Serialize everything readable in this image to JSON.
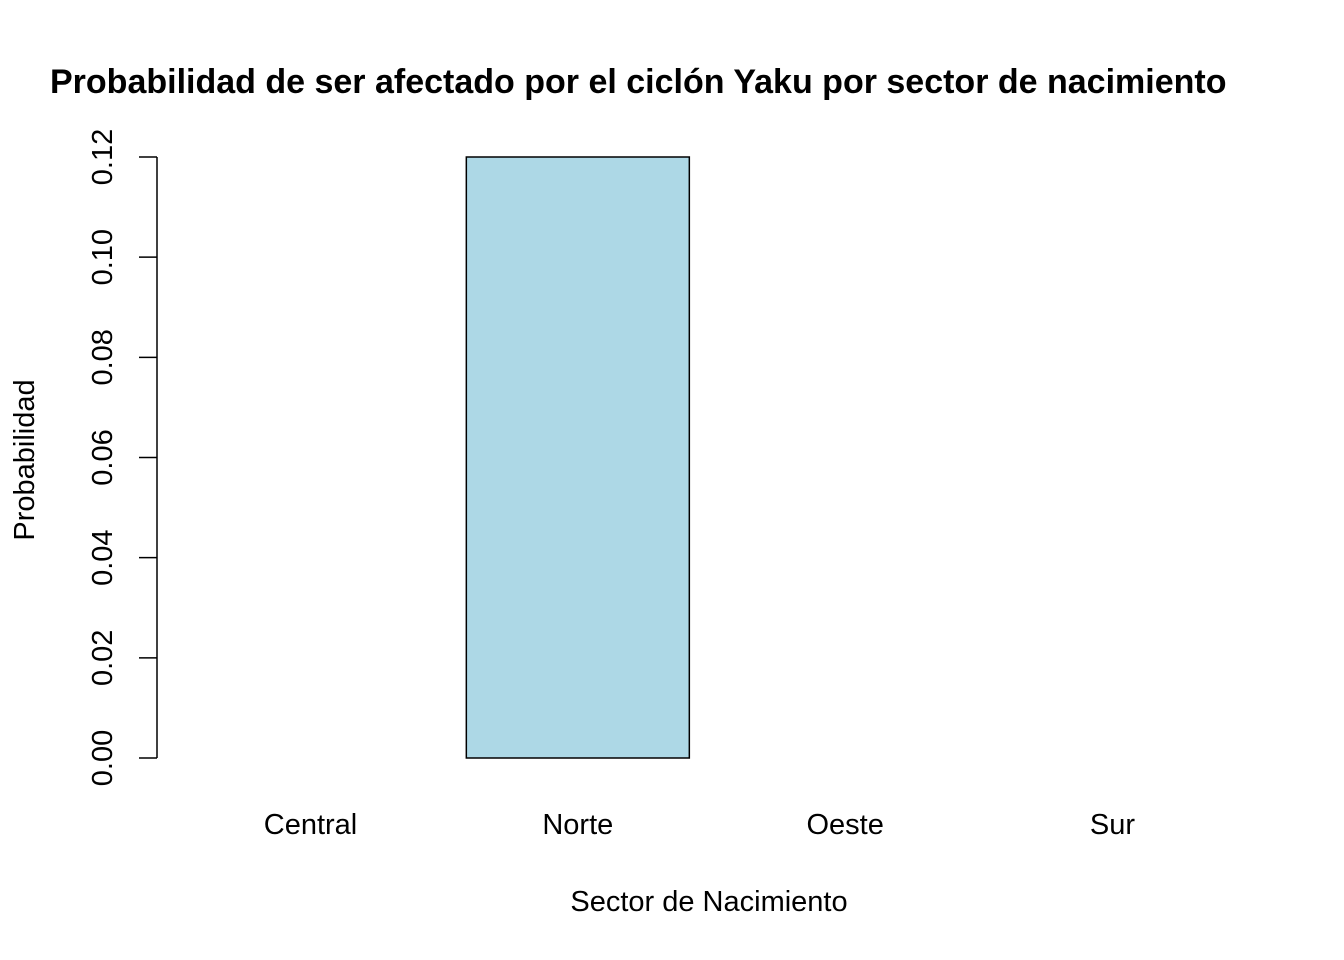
{
  "chart_data": {
    "type": "bar",
    "title": "Probabilidad de ser afectado por el ciclón Yaku por sector de nacimiento",
    "xlabel": "Sector de Nacimiento",
    "ylabel": "Probabilidad",
    "categories": [
      "Central",
      "Norte",
      "Oeste",
      "Sur"
    ],
    "values": [
      0.0,
      0.12,
      0.0,
      0.0
    ],
    "ylim": [
      0,
      0.12
    ],
    "yticks": [
      "0.00",
      "0.02",
      "0.04",
      "0.06",
      "0.08",
      "0.10",
      "0.12"
    ],
    "bar_color": "#add8e6",
    "grid": false,
    "legend": "none"
  }
}
